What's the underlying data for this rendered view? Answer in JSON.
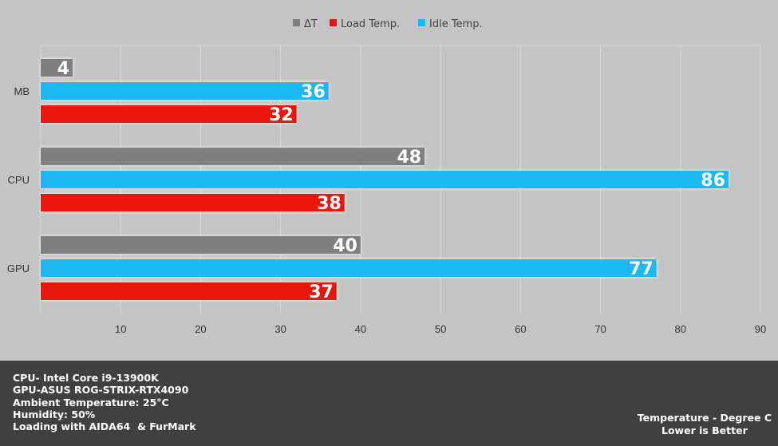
{
  "chart_data": {
    "type": "bar",
    "orientation": "horizontal",
    "categories": [
      "MB",
      "CPU",
      "GPU"
    ],
    "series": [
      {
        "name": "ΔT",
        "color": "#7f7f7f",
        "values": [
          4,
          48,
          40
        ]
      },
      {
        "name": "Idle Temp.",
        "color": "#1ab8f3",
        "values": [
          36,
          86,
          77
        ]
      },
      {
        "name": "Load Temp.",
        "color": "#e8130d",
        "values": [
          32,
          38,
          37
        ]
      }
    ],
    "legend_order": [
      "ΔT",
      "Load Temp.",
      "Idle Temp."
    ],
    "legend_position": "top",
    "xlim": [
      0,
      90
    ],
    "xticks": [
      10,
      20,
      30,
      40,
      50,
      60,
      70,
      80,
      90
    ],
    "grid": true,
    "title": "",
    "xlabel": "",
    "ylabel": ""
  },
  "footer": {
    "notes": [
      "CPU- Intel Core i9-13900K",
      "GPU-ASUS ROG-STRIX-RTX4090",
      "Ambient Temperature: 25°C",
      "Humidity: 50%",
      "Loading with AIDA64  & FurMark"
    ],
    "caption_line1": "Temperature - Degree C",
    "caption_line2": "Lower is Better"
  }
}
